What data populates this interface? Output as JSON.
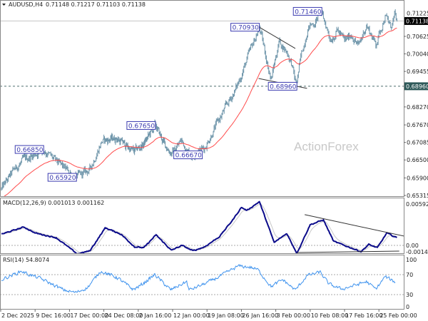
{
  "header": {
    "symbol": "AUDUSD,H4",
    "ohlc": "0.71148 0.71217 0.71103 0.71138"
  },
  "watermark": "ActionForex",
  "colors": {
    "bars": "#6e95aa",
    "ma": "#ff4b4b",
    "macd_main": "#0b0b8a",
    "macd_signal": "#c8c8c8",
    "rsi": "#3f93ee",
    "annotation": "#3b3bb0",
    "current_price_box": "#000000",
    "level_box": "#2f5a5a"
  },
  "chart_data": [
    {
      "type": "line",
      "panel": "price",
      "title": "AUDUSD,H4 0.71148 0.71217 0.71103 0.71138",
      "ylim": [
        0.65315,
        0.71225
      ],
      "y_ticks": [
        "0.71225",
        "0.70625",
        "0.70040",
        "0.69455",
        "0.68270",
        "0.67670",
        "0.67085",
        "0.66500",
        "0.65900",
        "0.65315"
      ],
      "current_price": {
        "value": 0.71138,
        "label": "0.71138"
      },
      "level": {
        "value": 0.6896,
        "label": "0.68960"
      },
      "price_path": [
        [
          "2025-12-02 04:00",
          0.6553
        ],
        [
          "2025-12-05 00:00",
          0.6617
        ],
        [
          "2025-12-07 00:00",
          0.6648
        ],
        [
          "2025-12-11 12:00",
          0.6685
        ],
        [
          "2025-12-14 04:00",
          0.6643
        ],
        [
          "2025-12-18 12:00",
          0.6592
        ],
        [
          "2025-12-21 08:00",
          0.6617
        ],
        [
          "2025-12-23 20:00",
          0.6712
        ],
        [
          "2025-12-27 16:00",
          0.6724
        ],
        [
          "2026-01-01 12:00",
          0.6677
        ],
        [
          "2026-01-04 00:00",
          0.6701
        ],
        [
          "2026-01-07 08:00",
          0.6765
        ],
        [
          "2026-01-09 20:00",
          0.6701
        ],
        [
          "2026-01-11 20:00",
          0.6672
        ],
        [
          "2026-01-13 20:00",
          0.6715
        ],
        [
          "2026-01-15 20:00",
          0.6667
        ],
        [
          "2026-01-18 20:00",
          0.6691
        ],
        [
          "2026-01-20 16:00",
          0.6748
        ],
        [
          "2026-01-25 16:00",
          0.6893
        ],
        [
          "2026-01-28 04:00",
          0.6998
        ],
        [
          "2026-01-30 12:00",
          0.7093
        ],
        [
          "2026-01-31 16:00",
          0.7012
        ],
        [
          "2026-02-02 00:00",
          0.6917
        ],
        [
          "2026-02-03 16:00",
          0.7046
        ],
        [
          "2026-02-05 08:00",
          0.7012
        ],
        [
          "2026-02-06 08:00",
          0.6974
        ],
        [
          "2026-02-07 08:00",
          0.6896
        ],
        [
          "2026-02-08 08:00",
          0.6989
        ],
        [
          "2026-02-09 20:00",
          0.7093
        ],
        [
          "2026-02-11 08:00",
          0.7108
        ],
        [
          "2026-02-12 12:00",
          0.7146
        ],
        [
          "2026-02-13 20:00",
          0.7093
        ],
        [
          "2026-02-14 16:00",
          0.7053
        ],
        [
          "2026-02-16 04:00",
          0.7084
        ],
        [
          "2026-02-17 16:00",
          0.7046
        ],
        [
          "2026-02-19 04:00",
          0.707
        ],
        [
          "2026-02-20 16:00",
          0.7029
        ],
        [
          "2026-02-22 08:00",
          0.7101
        ],
        [
          "2026-02-24 08:00",
          0.7036
        ],
        [
          "2026-02-26 08:00",
          0.7132
        ],
        [
          "2026-02-27 12:00",
          0.7093
        ],
        [
          "2026-02-28 08:00",
          0.7129
        ],
        [
          "2026-02-28 20:00",
          0.71138
        ]
      ],
      "annotations": [
        {
          "text": "0.66850",
          "date": "2025-12-11 12:00",
          "price": 0.6685
        },
        {
          "text": "0.65920",
          "date": "2025-12-18 12:00",
          "price": 0.6592
        },
        {
          "text": "0.67650",
          "date": "2026-01-07 08:00",
          "price": 0.6765
        },
        {
          "text": "0.66670",
          "date": "2026-01-18 08:00",
          "price": 0.6667
        },
        {
          "text": "0.70930",
          "date": "2026-01-30 12:00",
          "price": 0.7093
        },
        {
          "text": "0.68960",
          "date": "2026-02-07 12:00",
          "price": 0.6896
        },
        {
          "text": "0.71460",
          "date": "2026-02-12 20:00",
          "price": 0.7146
        }
      ],
      "trendlines": [
        [
          [
            "2026-01-30 12:00",
            0.7093
          ],
          [
            "2026-02-07 04:00",
            0.7022
          ]
        ],
        [
          [
            "2026-01-30 08:00",
            0.6922
          ],
          [
            "2026-02-09 16:00",
            0.6889
          ]
        ]
      ]
    },
    {
      "type": "line",
      "panel": "macd",
      "title": "MACD(12,26,9) 0.001013 0.001162",
      "ylim": [
        -0.001412,
        0.005928
      ],
      "y_ticks": [
        "0.005928",
        "0.00",
        "-0.001412"
      ],
      "zero_line": true,
      "series": [
        {
          "values": [
            [
              "2025-12-02 04:00",
              0.00149
            ],
            [
              "2025-12-07 04:00",
              0.00245
            ],
            [
              "2025-12-09 16:00",
              0.00165
            ],
            [
              "2025-12-14 04:00",
              0.00102
            ],
            [
              "2025-12-18 16:00",
              -0.00114
            ],
            [
              "2025-12-21 08:00",
              -0.00073
            ],
            [
              "2025-12-24 16:00",
              0.00235
            ],
            [
              "2025-12-29 00:00",
              0.00149
            ],
            [
              "2026-01-01 16:00",
              -0.00019
            ],
            [
              "2026-01-04 04:00",
              -0.00032
            ],
            [
              "2026-01-07 12:00",
              0.0014
            ],
            [
              "2026-01-11 16:00",
              -0.00067
            ],
            [
              "2026-01-14 00:00",
              0.0
            ],
            [
              "2026-01-16 08:00",
              -0.00073
            ],
            [
              "2026-01-18 20:00",
              -0.00019
            ],
            [
              "2026-01-22 00:00",
              0.00117
            ],
            [
              "2026-01-25 00:00",
              0.00355
            ],
            [
              "2026-01-26 16:00",
              0.00507
            ],
            [
              "2026-01-27 20:00",
              0.00466
            ],
            [
              "2026-01-30 12:00",
              0.00583
            ],
            [
              "2026-02-02 16:00",
              0.00038
            ],
            [
              "2026-02-05 08:00",
              0.00159
            ],
            [
              "2026-02-07 12:00",
              -0.00105
            ],
            [
              "2026-02-10 08:00",
              0.00276
            ],
            [
              "2026-02-13 04:00",
              0.0034
            ],
            [
              "2026-02-15 08:00",
              0.00054
            ],
            [
              "2026-02-21 04:00",
              -0.00083
            ],
            [
              "2026-02-22 20:00",
              0.00012
            ],
            [
              "2026-02-24 16:00",
              -0.00032
            ],
            [
              "2026-02-26 16:00",
              0.00165
            ],
            [
              "2026-02-28 20:00",
              0.001013
            ]
          ]
        }
      ],
      "trendlines": [
        [
          [
            "2026-02-09 04:00",
            0.0041
          ],
          [
            "2026-03-02 08:00",
            0.00124
          ]
        ],
        [
          [
            "2026-02-07 12:00",
            -0.00095
          ],
          [
            "2026-03-01 08:00",
            -0.00076
          ]
        ]
      ]
    },
    {
      "type": "line",
      "panel": "rsi",
      "title": "RSI(14) 54.8074",
      "ylim": [
        0,
        100
      ],
      "y_ticks": [
        "100",
        "70",
        "30",
        "0"
      ],
      "levels": [
        70,
        30
      ],
      "series": [
        {
          "values": [
            [
              "2025-12-02 04:00",
              60
            ],
            [
              "2025-12-06 16:00",
              77
            ],
            [
              "2025-12-08 08:00",
              70
            ],
            [
              "2025-12-10 16:00",
              63
            ],
            [
              "2025-12-15 20:00",
              39
            ],
            [
              "2025-12-18 08:00",
              34
            ],
            [
              "2025-12-20 20:00",
              44
            ],
            [
              "2025-12-23 16:00",
              77
            ],
            [
              "2025-12-28 04:00",
              63
            ],
            [
              "2026-01-01 08:00",
              40
            ],
            [
              "2026-01-03 20:00",
              51
            ],
            [
              "2026-01-07 04:00",
              70
            ],
            [
              "2026-01-11 12:00",
              39
            ],
            [
              "2026-01-15 00:00",
              56
            ],
            [
              "2026-01-15 12:00",
              39
            ],
            [
              "2026-01-18 16:00",
              51
            ],
            [
              "2026-01-21 08:00",
              63
            ],
            [
              "2026-01-26 00:00",
              87
            ],
            [
              "2026-01-28 12:00",
              85
            ],
            [
              "2026-01-30 04:00",
              80
            ],
            [
              "2026-02-02 00:00",
              46
            ],
            [
              "2026-02-04 12:00",
              60
            ],
            [
              "2026-02-07 04:00",
              39
            ],
            [
              "2026-02-09 16:00",
              68
            ],
            [
              "2026-02-12 12:00",
              75
            ],
            [
              "2026-02-14 08:00",
              51
            ],
            [
              "2026-02-17 00:00",
              41
            ],
            [
              "2026-02-20 00:00",
              49
            ],
            [
              "2026-02-22 08:00",
              56
            ],
            [
              "2026-02-24 08:00",
              41
            ],
            [
              "2026-02-26 08:00",
              66
            ],
            [
              "2026-02-28 12:00",
              54.8074
            ]
          ]
        }
      ]
    }
  ],
  "time_axis": {
    "ticks": [
      {
        "label": "2 Dec 2025",
        "date": "2025-12-02 00:00"
      },
      {
        "label": "9 Dec 16:00",
        "date": "2025-12-09 16:00"
      },
      {
        "label": "17 Dec 00:00",
        "date": "2025-12-17 00:00"
      },
      {
        "label": "24 Dec 08:00",
        "date": "2025-12-24 08:00"
      },
      {
        "label": "2 Jan 16:00",
        "date": "2026-01-02 16:00"
      },
      {
        "label": "12 Jan 00:00",
        "date": "2026-01-12 00:00"
      },
      {
        "label": "19 Jan 08:00",
        "date": "2026-01-19 08:00"
      },
      {
        "label": "26 Jan 16:00",
        "date": "2026-01-26 16:00"
      },
      {
        "label": "3 Feb 00:00",
        "date": "2026-02-03 00:00"
      },
      {
        "label": "10 Feb 08:00",
        "date": "2026-02-10 08:00"
      },
      {
        "label": "17 Feb 16:00",
        "date": "2026-02-17 16:00"
      },
      {
        "label": "25 Feb 00:00",
        "date": "2026-02-25 00:00"
      }
    ]
  }
}
